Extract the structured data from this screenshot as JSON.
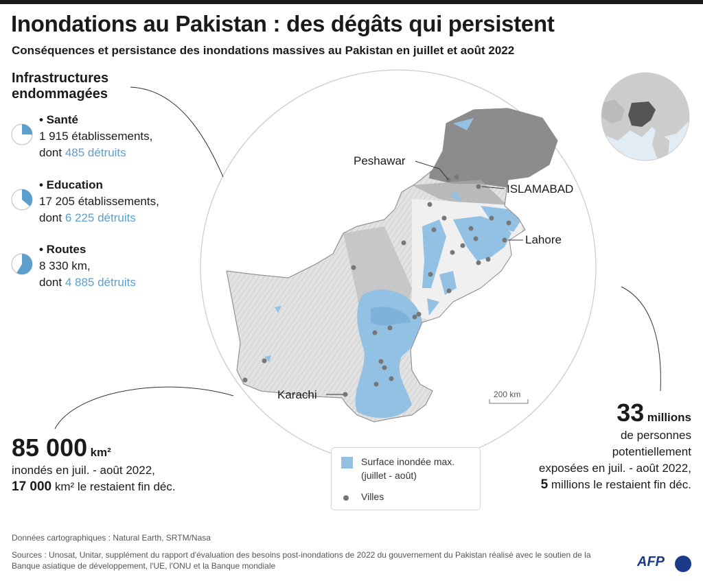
{
  "header": {
    "title": "Inondations au Pakistan : des dégâts qui persistent",
    "subtitle": "Conséquences et persistance des inondations massives au Pakistan en juillet et août 2022"
  },
  "infrastructure": {
    "heading_line1": "Infrastructures",
    "heading_line2": "endommagées",
    "items": [
      {
        "name": "• Santé",
        "total": "1 915 établissements,",
        "destroyed_prefix": "dont ",
        "destroyed": "485 détruits",
        "destroyed_fraction": 0.253
      },
      {
        "name": "• Education",
        "total": "17 205 établissements,",
        "destroyed_prefix": "dont ",
        "destroyed": "6 225 détruits",
        "destroyed_fraction": 0.362
      },
      {
        "name": "• Routes",
        "total": "8 330 km,",
        "destroyed_prefix": "dont ",
        "destroyed": "4 885 détruits",
        "destroyed_fraction": 0.586
      }
    ]
  },
  "flooded_area": {
    "value": "85 000",
    "unit": "km²",
    "line1": "inondés en juil. - août 2022,",
    "remaining_value": "17 000",
    "remaining_unit": "km²",
    "remaining_text": " le restaient fin déc."
  },
  "people": {
    "value": "33",
    "unit": "millions",
    "line1": "de personnes",
    "line2": "potentiellement",
    "line3": "exposées en juil. - août 2022,",
    "remaining_value": "5",
    "remaining_text": " millions le restaient fin déc."
  },
  "map": {
    "cities_labeled": [
      "Peshawar",
      "ISLAMABAD",
      "Lahore",
      "Karachi"
    ],
    "scale": "200 km",
    "colors": {
      "flood": "#93c1e3",
      "terrain": "#e4e4e4",
      "terrain_dark": "#8a8a8a",
      "city": "#777777",
      "accent": "#5b9fcc"
    }
  },
  "legend": {
    "flood_label": "Surface inondée max. (juillet - août)",
    "cities_label": "Villes"
  },
  "footer": {
    "map_data": "Données cartographiques : Natural Earth, SRTM/Nasa",
    "sources": "Sources : Unosat, Unitar, supplément du rapport d'évaluation des besoins post-inondations de 2022 du gouvernement du Pakistan réalisé avec le soutien de la Banque asiatique de développement, l'UE, l'ONU et la Banque mondiale",
    "logo": "AFP"
  }
}
